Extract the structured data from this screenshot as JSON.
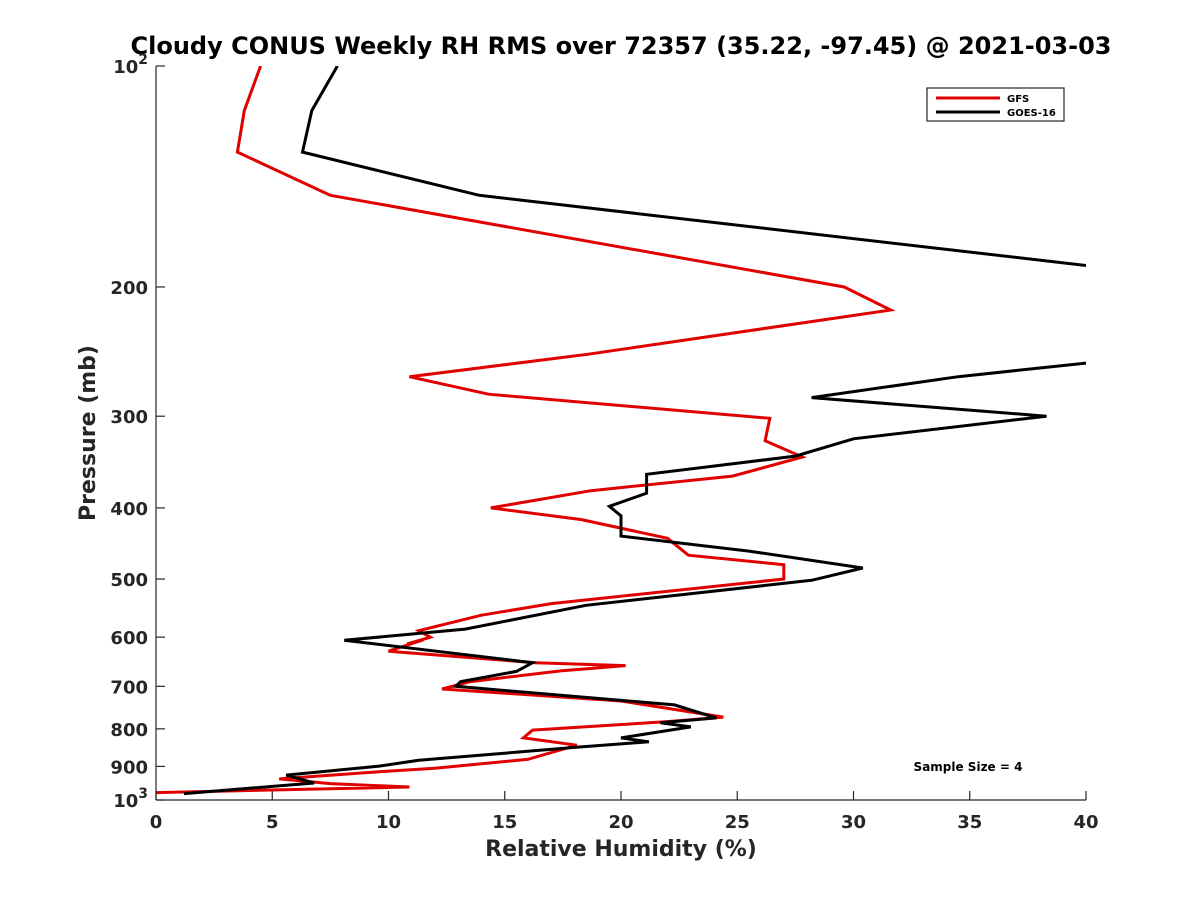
{
  "chart_data": {
    "type": "line",
    "title": "Cloudy CONUS Weekly RH RMS over 72357 (35.22, -97.45) @ 2021-03-03",
    "xlabel": "Relative Humidity (%)",
    "ylabel": "Pressure (mb)",
    "xlim": [
      0,
      40
    ],
    "ylim": [
      100,
      1000
    ],
    "y_scale": "log",
    "y_reversed": true,
    "grid": false,
    "legend_position": "top-right",
    "x_ticks": [
      0,
      5,
      10,
      15,
      20,
      25,
      30,
      35,
      40
    ],
    "y_ticks": [
      {
        "value": 100,
        "label": "10",
        "sup": "2"
      },
      {
        "value": 200,
        "label": "200",
        "sup": ""
      },
      {
        "value": 300,
        "label": "300",
        "sup": ""
      },
      {
        "value": 400,
        "label": "400",
        "sup": ""
      },
      {
        "value": 500,
        "label": "500",
        "sup": ""
      },
      {
        "value": 600,
        "label": "600",
        "sup": ""
      },
      {
        "value": 700,
        "label": "700",
        "sup": ""
      },
      {
        "value": 800,
        "label": "800",
        "sup": ""
      },
      {
        "value": 900,
        "label": "900",
        "sup": ""
      },
      {
        "value": 1000,
        "label": "10",
        "sup": "3"
      }
    ],
    "series": [
      {
        "name": "GFS",
        "color": "#e00000",
        "points": [
          {
            "rh": 4.5,
            "p": 100
          },
          {
            "rh": 3.8,
            "p": 115
          },
          {
            "rh": 3.5,
            "p": 131
          },
          {
            "rh": 7.5,
            "p": 150
          },
          {
            "rh": 29.6,
            "p": 200
          },
          {
            "rh": 31.6,
            "p": 215
          },
          {
            "rh": 18.6,
            "p": 247
          },
          {
            "rh": 10.9,
            "p": 265
          },
          {
            "rh": 14.3,
            "p": 280
          },
          {
            "rh": 26.4,
            "p": 302
          },
          {
            "rh": 26.2,
            "p": 324
          },
          {
            "rh": 27.8,
            "p": 341
          },
          {
            "rh": 24.8,
            "p": 362
          },
          {
            "rh": 18.7,
            "p": 379
          },
          {
            "rh": 14.4,
            "p": 400
          },
          {
            "rh": 18.3,
            "p": 415
          },
          {
            "rh": 22.0,
            "p": 440
          },
          {
            "rh": 22.9,
            "p": 464
          },
          {
            "rh": 27.0,
            "p": 478
          },
          {
            "rh": 27.0,
            "p": 500
          },
          {
            "rh": 17.0,
            "p": 540
          },
          {
            "rh": 14.0,
            "p": 560
          },
          {
            "rh": 11.3,
            "p": 588
          },
          {
            "rh": 11.8,
            "p": 600
          },
          {
            "rh": 10.8,
            "p": 613
          },
          {
            "rh": 11.5,
            "p": 605
          },
          {
            "rh": 10.0,
            "p": 627
          },
          {
            "rh": 16.3,
            "p": 650
          },
          {
            "rh": 20.2,
            "p": 656
          },
          {
            "rh": 17.4,
            "p": 667
          },
          {
            "rh": 13.5,
            "p": 690
          },
          {
            "rh": 12.3,
            "p": 706
          },
          {
            "rh": 20.0,
            "p": 733
          },
          {
            "rh": 24.4,
            "p": 771
          },
          {
            "rh": 22.0,
            "p": 782
          },
          {
            "rh": 16.2,
            "p": 803
          },
          {
            "rh": 15.8,
            "p": 823
          },
          {
            "rh": 18.1,
            "p": 842
          },
          {
            "rh": 16.0,
            "p": 880
          },
          {
            "rh": 12.0,
            "p": 905
          },
          {
            "rh": 9.6,
            "p": 915
          },
          {
            "rh": 5.3,
            "p": 936
          },
          {
            "rh": 7.5,
            "p": 950
          },
          {
            "rh": 10.9,
            "p": 960
          },
          {
            "rh": 0.0,
            "p": 977
          }
        ]
      },
      {
        "name": "GOES-16",
        "color": "#000000",
        "points": [
          {
            "rh": 7.8,
            "p": 100
          },
          {
            "rh": 6.7,
            "p": 115
          },
          {
            "rh": 6.3,
            "p": 131
          },
          {
            "rh": 13.9,
            "p": 150
          },
          {
            "rh": 40.0,
            "p": 187
          }
        ],
        "points_lower": [
          {
            "rh": 40.0,
            "p": 254
          },
          {
            "rh": 34.5,
            "p": 265
          },
          {
            "rh": 28.2,
            "p": 283
          },
          {
            "rh": 38.3,
            "p": 300
          },
          {
            "rh": 30.0,
            "p": 322
          },
          {
            "rh": 27.5,
            "p": 340
          },
          {
            "rh": 21.1,
            "p": 360
          },
          {
            "rh": 21.1,
            "p": 382
          },
          {
            "rh": 19.5,
            "p": 398
          },
          {
            "rh": 20.0,
            "p": 410
          },
          {
            "rh": 20.0,
            "p": 437
          },
          {
            "rh": 25.5,
            "p": 458
          },
          {
            "rh": 30.4,
            "p": 483
          },
          {
            "rh": 28.2,
            "p": 502
          },
          {
            "rh": 18.5,
            "p": 543
          },
          {
            "rh": 13.3,
            "p": 585
          },
          {
            "rh": 8.1,
            "p": 606
          },
          {
            "rh": 16.2,
            "p": 650
          },
          {
            "rh": 15.5,
            "p": 668
          },
          {
            "rh": 13.1,
            "p": 690
          },
          {
            "rh": 12.9,
            "p": 700
          },
          {
            "rh": 22.3,
            "p": 742
          },
          {
            "rh": 24.1,
            "p": 773
          },
          {
            "rh": 21.7,
            "p": 785
          },
          {
            "rh": 23.0,
            "p": 795
          },
          {
            "rh": 20.0,
            "p": 823
          },
          {
            "rh": 21.2,
            "p": 833
          },
          {
            "rh": 18.0,
            "p": 848
          },
          {
            "rh": 11.3,
            "p": 883
          },
          {
            "rh": 9.6,
            "p": 899
          },
          {
            "rh": 5.6,
            "p": 925
          },
          {
            "rh": 6.8,
            "p": 948
          },
          {
            "rh": 1.2,
            "p": 980
          }
        ]
      }
    ],
    "annotation": "Sample Size = 4"
  }
}
